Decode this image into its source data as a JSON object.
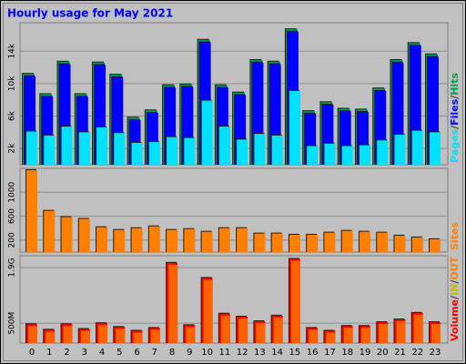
{
  "chart_data": {
    "type": "bar",
    "title": "Hourly usage for May 2021",
    "categories": [
      "0",
      "1",
      "2",
      "3",
      "4",
      "5",
      "6",
      "7",
      "8",
      "9",
      "10",
      "11",
      "12",
      "13",
      "14",
      "15",
      "16",
      "17",
      "18",
      "19",
      "20",
      "21",
      "22",
      "23"
    ],
    "legend_separator": "/",
    "panels": [
      {
        "ylim": [
          0,
          17500
        ],
        "yticks": [
          {
            "value": 2000,
            "label": "2k"
          },
          {
            "value": 6000,
            "label": "6k"
          },
          {
            "value": 10000,
            "label": "10k"
          },
          {
            "value": 14000,
            "label": "14k"
          }
        ],
        "grid": true,
        "series": [
          {
            "name": "Hits",
            "color": "#00a050",
            "values": [
              11200,
              8700,
              12700,
              8700,
              12600,
              11100,
              5800,
              6700,
              9800,
              9900,
              15400,
              9800,
              8900,
              12900,
              12700,
              16700,
              6600,
              7700,
              6900,
              6800,
              9400,
              12900,
              15000,
              13600
            ]
          },
          {
            "name": "Files",
            "color": "#0000ff",
            "values": [
              10900,
              8400,
              12400,
              8400,
              12300,
              10800,
              5500,
              6400,
              9500,
              9600,
              15100,
              9500,
              8600,
              12600,
              12400,
              16400,
              6300,
              7400,
              6600,
              6500,
              9100,
              12600,
              14700,
              13300
            ]
          },
          {
            "name": "Pages",
            "color": "#00e0ff",
            "values": [
              4100,
              3600,
              4700,
              4000,
              4600,
              3900,
              2700,
              2800,
              3400,
              3300,
              7900,
              4700,
              3100,
              3800,
              3600,
              9100,
              2300,
              2600,
              2300,
              2400,
              3000,
              3700,
              4200,
              4000
            ]
          }
        ]
      },
      {
        "ylim": [
          0,
          1400
        ],
        "yticks": [
          200,
          600,
          1000
        ],
        "grid": true,
        "series": [
          {
            "name": "Sites",
            "color": "#ff8000",
            "values": [
              1370,
              690,
              585,
              555,
              415,
              370,
              400,
              430,
              370,
              385,
              340,
              400,
              400,
              310,
              310,
              290,
              290,
              325,
              355,
              340,
              325,
              275,
              245,
              215
            ]
          }
        ]
      },
      {
        "ylim": [
          0,
          2200
        ],
        "yticks": [
          {
            "value": 500,
            "label": "500M"
          },
          {
            "value": 1900,
            "label": "1.9G"
          }
        ],
        "grid": true,
        "series": [
          {
            "name": "Volume",
            "color": "#ff0000",
            "values": [
              475,
              335,
              475,
              355,
              500,
              405,
              310,
              380,
              2020,
              450,
              1640,
              740,
              665,
              550,
              690,
              2120,
              380,
              310,
              430,
              430,
              525,
              595,
              760,
              525
            ]
          }
        ],
        "legend_extra": [
          {
            "name": "IN",
            "color": "#c0c000"
          },
          {
            "name": "OUT",
            "color": "#ff8000"
          }
        ]
      }
    ]
  }
}
